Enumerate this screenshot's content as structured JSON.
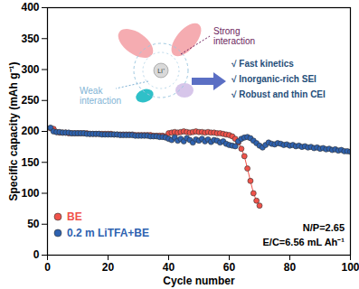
{
  "chart_data": {
    "type": "line",
    "marker": "circle",
    "line_style": "solid",
    "xlabel": "Cycle number",
    "ylabel": "Specific capacity (mAh g⁻¹)",
    "xlim": [
      0,
      100
    ],
    "xticks": [
      0,
      20,
      40,
      60,
      80,
      100
    ],
    "ylim": [
      0,
      400
    ],
    "yticks": [
      0,
      50,
      100,
      150,
      200,
      250,
      300,
      350,
      400
    ],
    "legend": "bottom-left",
    "annotations": [
      "Li⁺",
      "Strong interaction",
      "Weak interaction",
      "√ Fast kinetics",
      "√ Inorganic-rich SEI",
      "√ Robust and thin CEI",
      "N/P=2.65",
      "E/C=6.56 mL Ah⁻¹"
    ],
    "x": [
      1,
      2,
      3,
      4,
      5,
      6,
      7,
      8,
      9,
      10,
      11,
      12,
      13,
      14,
      15,
      16,
      17,
      18,
      19,
      20,
      21,
      22,
      23,
      24,
      25,
      26,
      27,
      28,
      29,
      30,
      31,
      32,
      33,
      34,
      35,
      36,
      37,
      38,
      39,
      40,
      41,
      42,
      43,
      44,
      45,
      46,
      47,
      48,
      49,
      50,
      51,
      52,
      53,
      54,
      55,
      56,
      57,
      58,
      59,
      60,
      61,
      62,
      63,
      64,
      65,
      66,
      67,
      68,
      69,
      70,
      71,
      72,
      73,
      74,
      75,
      76,
      77,
      78,
      79,
      80,
      81,
      82,
      83,
      84,
      85,
      86,
      87,
      88,
      89,
      90,
      91,
      92,
      93,
      94,
      95,
      96,
      97,
      98,
      99,
      100
    ],
    "series": [
      {
        "name": "BE",
        "color": "#f0524a",
        "values": [
          205,
          204,
          199,
          198,
          198,
          198,
          197,
          197,
          197,
          197,
          197,
          197,
          197,
          196,
          196,
          196,
          196,
          196,
          196,
          196,
          196,
          195,
          195,
          195,
          195,
          195,
          195,
          195,
          194,
          194,
          194,
          194,
          194,
          194,
          193,
          193,
          193,
          193,
          192,
          197,
          198,
          199,
          198,
          199,
          200,
          199,
          198,
          199,
          200,
          199,
          199,
          198,
          199,
          198,
          198,
          197,
          197,
          196,
          195,
          194,
          192,
          188,
          182,
          172,
          160,
          140,
          120,
          100,
          88,
          80,
          null,
          null,
          null,
          null,
          null,
          null,
          null,
          null,
          null,
          null,
          null,
          null,
          null,
          null,
          null,
          null,
          null,
          null,
          null,
          null,
          null,
          null,
          null,
          null,
          null,
          null,
          null,
          null,
          null,
          null
        ]
      },
      {
        "name": "0.2 m LiTFA+BE",
        "color": "#2e62b0",
        "values": [
          206,
          200,
          199,
          199,
          198,
          198,
          198,
          197,
          197,
          197,
          197,
          197,
          196,
          196,
          196,
          196,
          196,
          195,
          195,
          195,
          195,
          195,
          195,
          194,
          194,
          194,
          194,
          194,
          193,
          193,
          193,
          193,
          193,
          192,
          192,
          192,
          191,
          191,
          190,
          188,
          186,
          190,
          185,
          188,
          184,
          189,
          186,
          182,
          187,
          185,
          188,
          184,
          187,
          183,
          186,
          185,
          182,
          184,
          180,
          178,
          177,
          176,
          184,
          188,
          190,
          191,
          189,
          185,
          181,
          177,
          174,
          178,
          182,
          180,
          179,
          181,
          180,
          178,
          179,
          177,
          178,
          176,
          177,
          175,
          176,
          174,
          175,
          173,
          174,
          172,
          173,
          171,
          172,
          170,
          171,
          169,
          170,
          168,
          168,
          167
        ]
      }
    ]
  }
}
